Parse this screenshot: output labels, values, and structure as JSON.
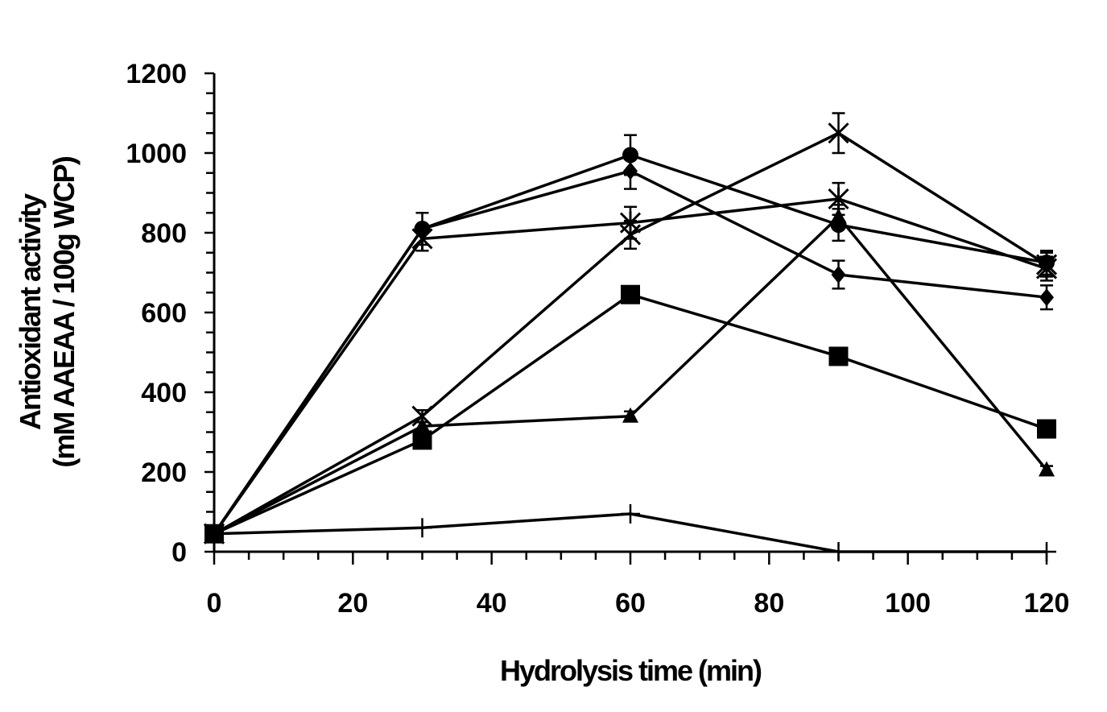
{
  "chart_data": {
    "type": "line",
    "xlabel": "Hydrolysis time (min)",
    "ylabel_line1": "Antioxidant activity",
    "ylabel_line2": "(mM AAEAA / 100g WCP)",
    "xlim": [
      0,
      120
    ],
    "ylim": [
      0,
      1200
    ],
    "x_ticks": [
      0,
      20,
      40,
      60,
      80,
      100,
      120
    ],
    "y_ticks": [
      0,
      200,
      400,
      600,
      800,
      1000,
      1200
    ],
    "grid": false,
    "legend": "none",
    "color": "#000000",
    "x": [
      0,
      30,
      60,
      90,
      120
    ],
    "series": [
      {
        "marker": "circle",
        "values": [
          45,
          810,
          995,
          820,
          725
        ],
        "errors": [
          0,
          40,
          50,
          40,
          30
        ]
      },
      {
        "marker": "diamond",
        "values": [
          45,
          810,
          955,
          695,
          638
        ],
        "errors": [
          0,
          0,
          45,
          35,
          30
        ]
      },
      {
        "marker": "asterisk",
        "values": [
          45,
          785,
          825,
          885,
          710
        ],
        "errors": [
          0,
          30,
          40,
          40,
          30
        ]
      },
      {
        "marker": "x",
        "values": [
          45,
          340,
          795,
          1050,
          720
        ],
        "errors": [
          0,
          15,
          35,
          50,
          30
        ]
      },
      {
        "marker": "square",
        "values": [
          45,
          280,
          645,
          490,
          308
        ],
        "errors": [
          0,
          10,
          20,
          10,
          10
        ]
      },
      {
        "marker": "triangle",
        "values": [
          45,
          315,
          340,
          840,
          205
        ],
        "errors": [
          0,
          10,
          12,
          30,
          10
        ]
      },
      {
        "marker": "plus",
        "values": [
          45,
          60,
          95,
          0,
          0
        ],
        "errors": [
          0,
          0,
          0,
          0,
          0
        ]
      }
    ]
  }
}
